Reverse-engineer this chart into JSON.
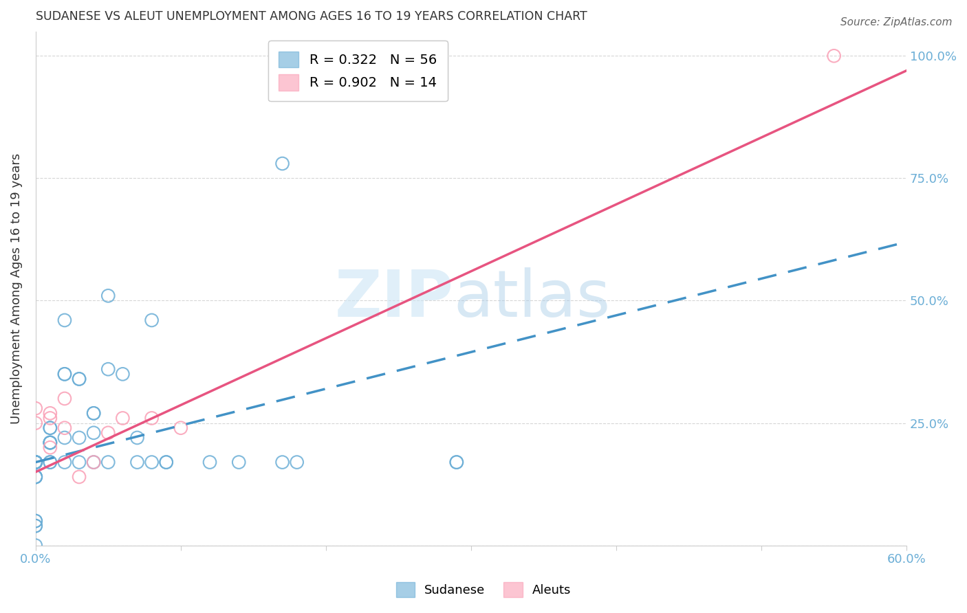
{
  "title": "SUDANESE VS ALEUT UNEMPLOYMENT AMONG AGES 16 TO 19 YEARS CORRELATION CHART",
  "source": "Source: ZipAtlas.com",
  "ylabel": "Unemployment Among Ages 16 to 19 years",
  "xlim": [
    0.0,
    0.6
  ],
  "ylim": [
    0.0,
    1.05
  ],
  "yticks": [
    0.0,
    0.25,
    0.5,
    0.75,
    1.0
  ],
  "ytick_labels": [
    "",
    "25.0%",
    "50.0%",
    "75.0%",
    "100.0%"
  ],
  "xticks": [
    0.0,
    0.1,
    0.2,
    0.3,
    0.4,
    0.5,
    0.6
  ],
  "xtick_labels": [
    "0.0%",
    "",
    "",
    "",
    "",
    "",
    "60.0%"
  ],
  "sudanese_color": "#6baed6",
  "aleut_color": "#fa9fb5",
  "sudanese_R": 0.322,
  "sudanese_N": 56,
  "aleut_R": 0.902,
  "aleut_N": 14,
  "sudanese_x": [
    0.0,
    0.0,
    0.0,
    0.0,
    0.0,
    0.0,
    0.0,
    0.0,
    0.0,
    0.0,
    0.0,
    0.0,
    0.0,
    0.0,
    0.0,
    0.01,
    0.01,
    0.01,
    0.01,
    0.01,
    0.01,
    0.01,
    0.01,
    0.02,
    0.02,
    0.02,
    0.02,
    0.02,
    0.03,
    0.03,
    0.03,
    0.03,
    0.04,
    0.04,
    0.04,
    0.04,
    0.05,
    0.05,
    0.05,
    0.06,
    0.07,
    0.07,
    0.08,
    0.08,
    0.09,
    0.09,
    0.12,
    0.14,
    0.17,
    0.17,
    0.18,
    0.29,
    0.29,
    0.0,
    0.0,
    0.0
  ],
  "sudanese_y": [
    0.17,
    0.17,
    0.17,
    0.17,
    0.17,
    0.17,
    0.17,
    0.17,
    0.17,
    0.14,
    0.14,
    0.14,
    0.14,
    0.05,
    0.05,
    0.17,
    0.17,
    0.21,
    0.21,
    0.21,
    0.21,
    0.24,
    0.24,
    0.17,
    0.22,
    0.35,
    0.35,
    0.46,
    0.22,
    0.17,
    0.34,
    0.34,
    0.23,
    0.27,
    0.27,
    0.17,
    0.17,
    0.51,
    0.36,
    0.35,
    0.17,
    0.22,
    0.17,
    0.46,
    0.17,
    0.17,
    0.17,
    0.17,
    0.17,
    0.78,
    0.17,
    0.17,
    0.17,
    0.0,
    0.04,
    0.04
  ],
  "aleut_x": [
    0.0,
    0.0,
    0.01,
    0.01,
    0.01,
    0.02,
    0.02,
    0.03,
    0.04,
    0.05,
    0.06,
    0.08,
    0.1,
    0.55
  ],
  "aleut_y": [
    0.25,
    0.28,
    0.2,
    0.27,
    0.26,
    0.24,
    0.3,
    0.14,
    0.17,
    0.23,
    0.26,
    0.26,
    0.24,
    1.0
  ],
  "sudanese_line_x": [
    0.0,
    0.6
  ],
  "sudanese_line_y": [
    0.17,
    0.62
  ],
  "aleut_line_x": [
    0.0,
    0.6
  ],
  "aleut_line_y": [
    0.15,
    0.97
  ],
  "sudanese_line_color": "#4292c6",
  "aleut_line_color": "#e75480",
  "grid_color": "#cccccc",
  "tick_label_color": "#6baed6",
  "title_color": "#333333",
  "ylabel_color": "#333333",
  "background_color": "#ffffff",
  "legend_R_label_sudanese": "R = 0.322   N = 56",
  "legend_R_label_aleut": "R = 0.902   N = 14",
  "legend_bottom_sudanese": "Sudanese",
  "legend_bottom_aleut": "Aleuts"
}
